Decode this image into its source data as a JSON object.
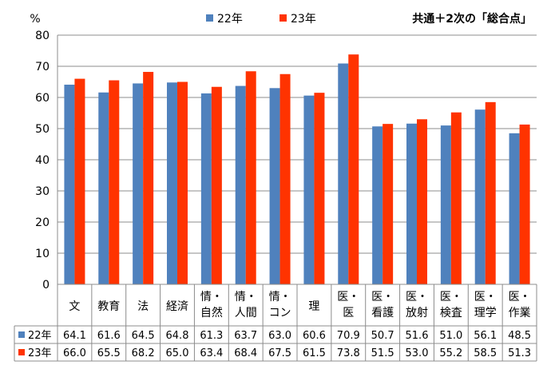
{
  "chart_data": {
    "type": "bar",
    "title": "共通＋2次の「総合点」",
    "ylabel": "%",
    "ylim": [
      0,
      80
    ],
    "yticks": [
      0,
      10,
      20,
      30,
      40,
      50,
      60,
      70,
      80
    ],
    "grid": true,
    "legend_position": "top",
    "categories": [
      [
        "文"
      ],
      [
        "教育"
      ],
      [
        "法"
      ],
      [
        "経済"
      ],
      [
        "情・",
        "自然"
      ],
      [
        "情・",
        "人間"
      ],
      [
        "情・",
        "コン"
      ],
      [
        "理"
      ],
      [
        "医・",
        "医"
      ],
      [
        "医・",
        "看護"
      ],
      [
        "医・",
        "放射"
      ],
      [
        "医・",
        "検査"
      ],
      [
        "医・",
        "理学"
      ],
      [
        "医・",
        "作業"
      ]
    ],
    "series": [
      {
        "name": "22年",
        "color": "#4f81bd",
        "values": [
          64.1,
          61.6,
          64.5,
          64.8,
          61.3,
          63.7,
          63.0,
          60.6,
          70.9,
          50.7,
          51.6,
          51.0,
          56.1,
          48.5
        ],
        "labels": [
          "64.1",
          "61.6",
          "64.5",
          "64.8",
          "61.3",
          "63.7",
          "63.0",
          "60.6",
          "70.9",
          "50.7",
          "51.6",
          "51.0",
          "56.1",
          "48.5"
        ]
      },
      {
        "name": "23年",
        "color": "#ff3300",
        "values": [
          66.0,
          65.5,
          68.2,
          65.0,
          63.4,
          68.4,
          67.5,
          61.5,
          73.8,
          51.5,
          53.0,
          55.2,
          58.5,
          51.3
        ],
        "labels": [
          "66.0",
          "65.5",
          "68.2",
          "65.0",
          "63.4",
          "68.4",
          "67.5",
          "61.5",
          "73.8",
          "51.5",
          "53.0",
          "55.2",
          "58.5",
          "51.3"
        ]
      }
    ]
  }
}
